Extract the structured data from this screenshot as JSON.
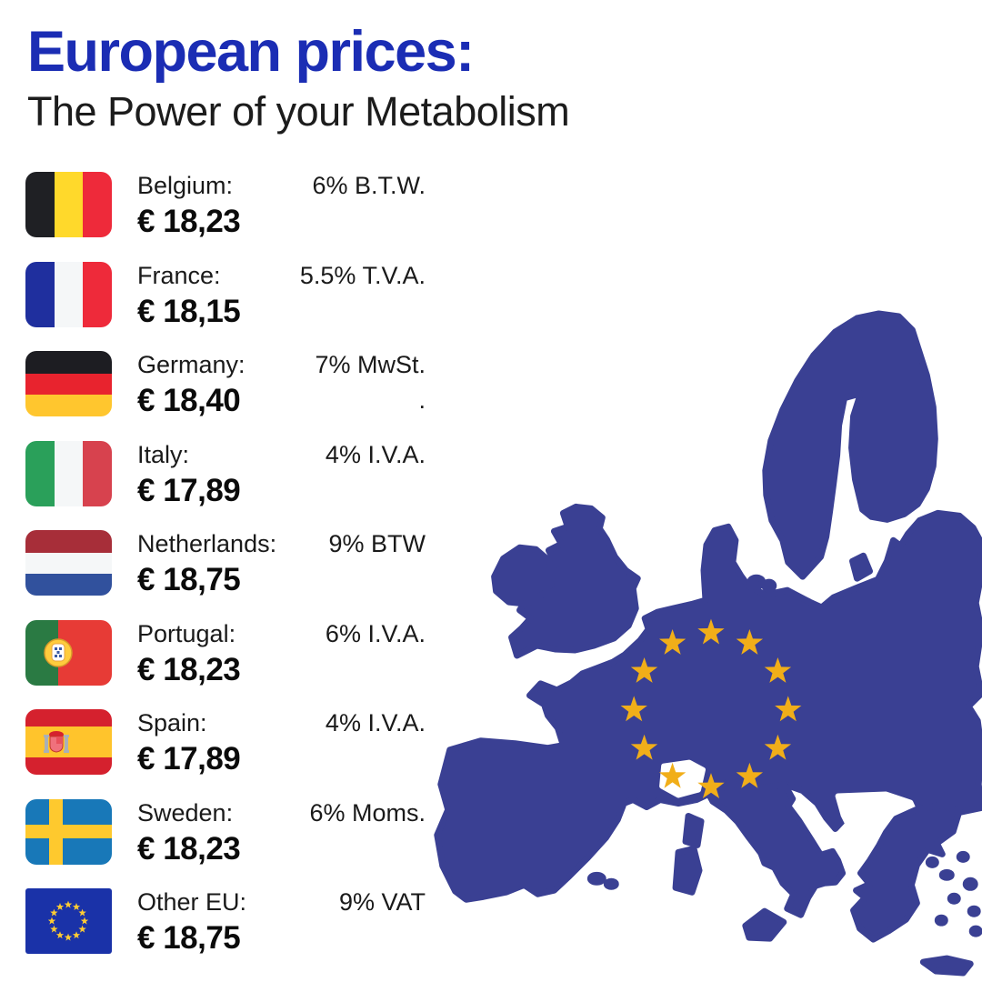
{
  "header": {
    "title": "European prices:",
    "subtitle": "The Power of your Metabolism"
  },
  "colors": {
    "title_blue": "#1b2db4",
    "text_dark": "#1a1a1a",
    "map_blue": "#3a4093",
    "star_gold": "#f1ae19",
    "background": "#ffffff"
  },
  "rows": [
    {
      "id": "belgium",
      "country": "Belgium:",
      "price": "€ 18,23",
      "vat": "6% B.T.W.",
      "flag": {
        "type": "v",
        "colors": [
          "#1f2024",
          "#ffd92b",
          "#ee2a3a"
        ]
      }
    },
    {
      "id": "france",
      "country": "France:",
      "price": "€ 18,15",
      "vat": "5.5% T.V.A.",
      "flag": {
        "type": "v",
        "colors": [
          "#1f2f9e",
          "#f5f7f8",
          "#ee2a3a"
        ]
      }
    },
    {
      "id": "germany",
      "country": "Germany:",
      "price": "€ 18,40",
      "vat": "7% MwSt.",
      "vat_line2": ".",
      "flag": {
        "type": "h",
        "colors": [
          "#1d1d22",
          "#e8232e",
          "#ffc62e"
        ]
      }
    },
    {
      "id": "italy",
      "country": "Italy:",
      "price": "€ 17,89",
      "vat": "4% I.V.A.",
      "flag": {
        "type": "v",
        "colors": [
          "#2aa05a",
          "#f5f7f8",
          "#d7424e"
        ]
      }
    },
    {
      "id": "netherlands",
      "country": "Netherlands:",
      "price": "€ 18,75",
      "vat": "9% BTW",
      "flag": {
        "type": "h",
        "colors": [
          "#a72e39",
          "#f5f7f8",
          "#31519d"
        ]
      }
    },
    {
      "id": "portugal",
      "country": "Portugal:",
      "price": "€ 18,23",
      "vat": "6% I.V.A.",
      "flag": {
        "type": "pt",
        "colors": [
          "#2a7a43",
          "#e73b36",
          "#ffcc3d"
        ]
      }
    },
    {
      "id": "spain",
      "country": "Spain:",
      "price": "€ 17,89",
      "vat": "4% I.V.A.",
      "flag": {
        "type": "es",
        "colors": [
          "#d5212e",
          "#ffc42c",
          "#aab0b6",
          "#f0717c"
        ]
      }
    },
    {
      "id": "sweden",
      "country": "Sweden:",
      "price": "€ 18,23",
      "vat": "6% Moms.",
      "flag": {
        "type": "cross",
        "colors": [
          "#1878b8",
          "#fec92e"
        ]
      }
    },
    {
      "id": "other-eu",
      "country": "Other EU:",
      "price": "€ 18,75",
      "vat": "9% VAT",
      "flag": {
        "type": "eu",
        "colors": [
          "#1a32a8",
          "#ffcc33"
        ]
      }
    }
  ],
  "map": {
    "stars_count": 12,
    "description": "EU map silhouette with circle of gold stars"
  }
}
